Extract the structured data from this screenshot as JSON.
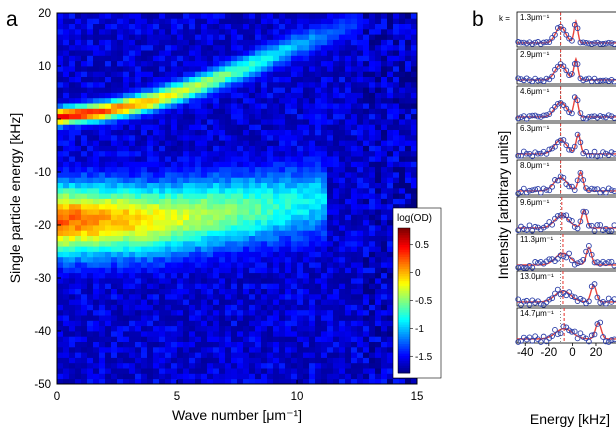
{
  "panels": {
    "a": "a",
    "b": "b"
  },
  "chart_data": [
    {
      "panel": "a",
      "type": "heatmap",
      "xlabel": "Wave number [μm⁻¹]",
      "ylabel": "Single particle energy [kHz]",
      "xlim": [
        0,
        15
      ],
      "ylim": [
        -50,
        20
      ],
      "xticks": [
        0,
        5,
        10,
        15
      ],
      "yticks": [
        20,
        10,
        0,
        -10,
        -20,
        -30,
        -40,
        -50
      ],
      "colorbar": {
        "title": "log(OD)",
        "range": [
          -1.8,
          0.8
        ],
        "ticks": [
          0.5,
          0,
          -0.5,
          -1,
          -1.5
        ],
        "tick_labels": [
          "0.5",
          "0",
          "-0.5",
          "-1",
          "-1.5"
        ],
        "colormap": "jet"
      },
      "features": [
        {
          "name": "upper branch",
          "k": [
            0,
            2,
            4,
            6,
            8,
            10,
            12.5
          ],
          "energy_khz": [
            0.5,
            1.5,
            3.5,
            6.5,
            10,
            14,
            18
          ],
          "peak_log_od": 0.6
        },
        {
          "name": "lower band",
          "k": [
            0,
            2,
            4,
            6,
            8,
            10,
            11
          ],
          "energy_khz": [
            -19,
            -19,
            -19,
            -18,
            -17,
            -16,
            -15
          ],
          "peak_log_od": 0.35
        }
      ]
    },
    {
      "panel": "b",
      "type": "line",
      "xlabel": "Energy [kHz]",
      "ylabel": "Intensity [arbitrary units]",
      "xticks": [
        -40,
        -20,
        0,
        20
      ],
      "k_prefix": "k = ",
      "legend": "stacked spectra",
      "series": [
        {
          "label": "1.3μm⁻¹",
          "peak1": -10,
          "peak2": 3
        },
        {
          "label": "2.9μm⁻¹",
          "peak1": -10,
          "peak2": 3
        },
        {
          "label": "4.6μm⁻¹",
          "peak1": -10,
          "peak2": 3
        },
        {
          "label": "6.3μm⁻¹",
          "peak1": -10,
          "peak2": 5
        },
        {
          "label": "8.0μm⁻¹",
          "peak1": -10,
          "peak2": 7
        },
        {
          "label": "9.6μm⁻¹",
          "peak1": -9,
          "peak2": 10
        },
        {
          "label": "11.3μm⁻¹",
          "peak1": -8,
          "peak2": 14
        },
        {
          "label": "13.0μm⁻¹",
          "peak1": -8,
          "peak2": 18
        },
        {
          "label": "14.7μm⁻¹",
          "peak1": -7,
          "peak2": 22
        }
      ]
    }
  ]
}
